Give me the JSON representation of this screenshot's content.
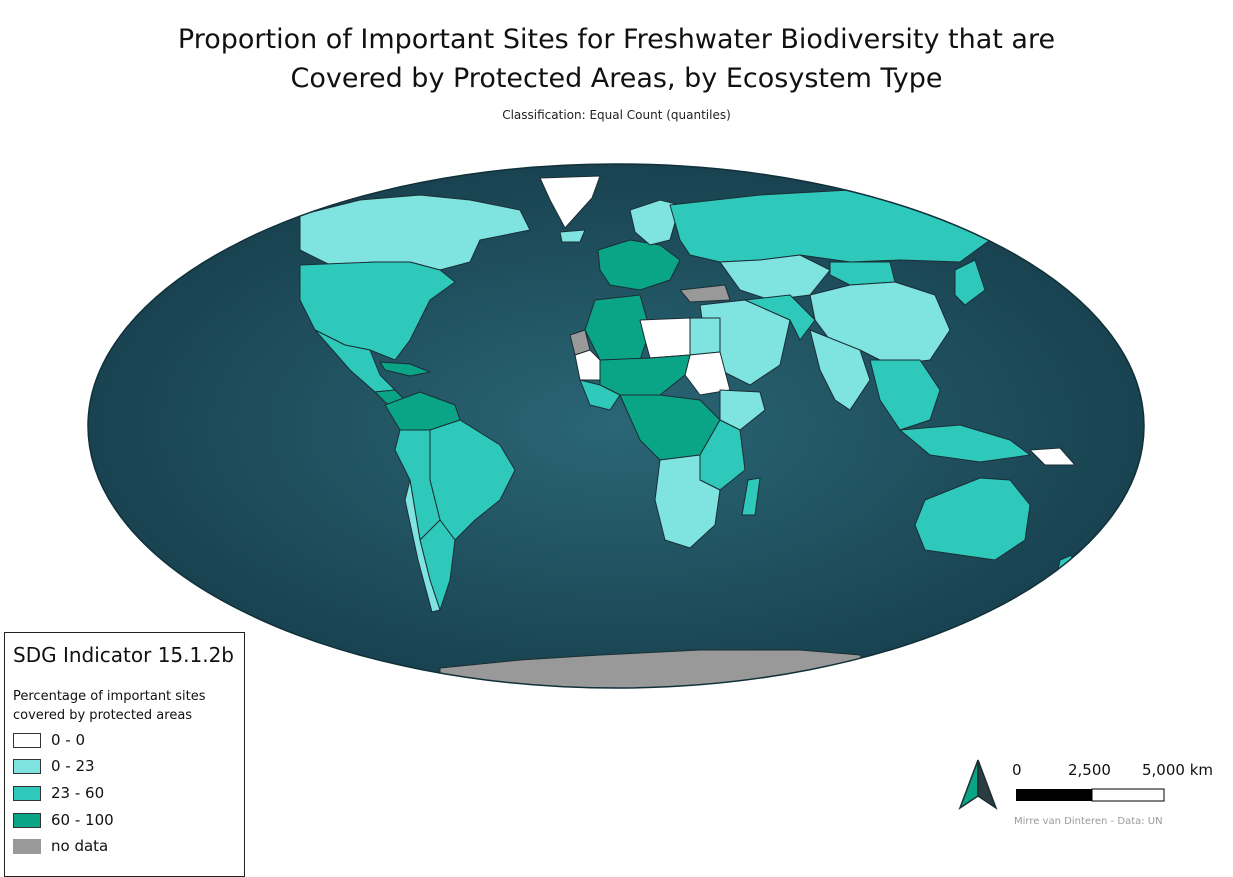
{
  "title_line1": "Proportion of Important Sites for Freshwater Biodiversity that are",
  "title_line2": "Covered by Protected Areas, by Ecosystem Type",
  "subtitle": "Classification: Equal Count (quantiles)",
  "colors": {
    "ocean": "#235665",
    "ocean_deep": "#163f4d",
    "class_0_0": "#ffffff",
    "class_0_23": "#7fe3e0",
    "class_23_60": "#2fc9bc",
    "class_60_100": "#0aa486",
    "no_data": "#999999",
    "border": "#1a2e33"
  },
  "legend": {
    "heading": "SDG Indicator 15.1.2b",
    "description": "Percentage of important sites covered by protected areas",
    "items": [
      {
        "label": "0 - 0",
        "color": "#ffffff"
      },
      {
        "label": "0 - 23",
        "color": "#7fe3e0"
      },
      {
        "label": "23 - 60",
        "color": "#2fc9bc"
      },
      {
        "label": "60 - 100",
        "color": "#0aa486"
      },
      {
        "label": "no data",
        "color": "#999999"
      }
    ]
  },
  "scale_bar": {
    "labels": [
      "0",
      "2,500",
      "5,000 km"
    ]
  },
  "north_arrow": {
    "icon": "north-arrow-icon"
  },
  "credit": "Mirre van Dinteren - Data: UN"
}
